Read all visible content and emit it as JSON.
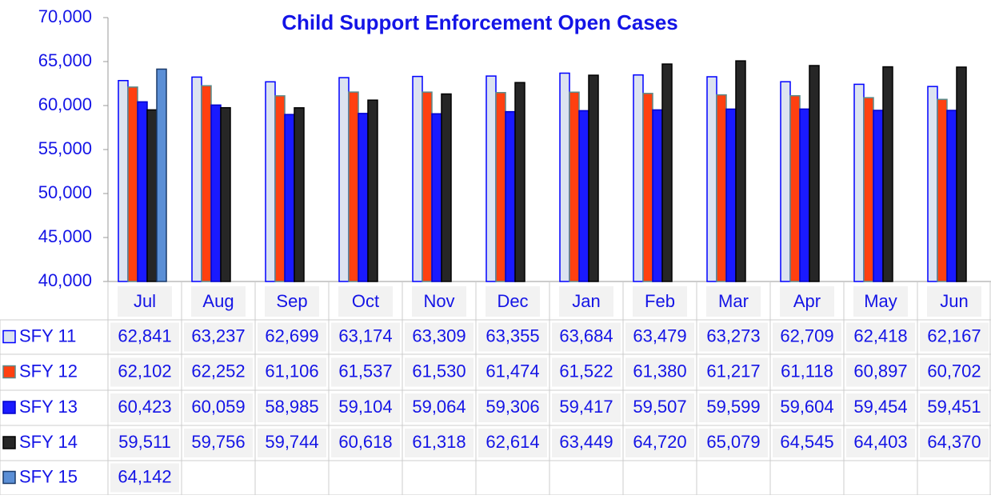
{
  "chart_data": {
    "type": "bar",
    "title": "Child Support Enforcement Open Cases",
    "categories": [
      "Jul",
      "Aug",
      "Sep",
      "Oct",
      "Nov",
      "Dec",
      "Jan",
      "Feb",
      "Mar",
      "Apr",
      "May",
      "Jun"
    ],
    "ylim": [
      40000,
      70000
    ],
    "yticks": [
      {
        "value": 40000,
        "label": "40,000"
      },
      {
        "value": 45000,
        "label": "45,000"
      },
      {
        "value": 50000,
        "label": "50,000"
      },
      {
        "value": 55000,
        "label": "55,000"
      },
      {
        "value": 60000,
        "label": "60,000"
      },
      {
        "value": 65000,
        "label": "65,000"
      },
      {
        "value": 70000,
        "label": "70,000"
      }
    ],
    "series": [
      {
        "name": "SFY 11",
        "color": "#dce3f0",
        "values": [
          62841,
          63237,
          62699,
          63174,
          63309,
          63355,
          63684,
          63479,
          63273,
          62709,
          62418,
          62167
        ],
        "value_labels": [
          "62,841",
          "63,237",
          "62,699",
          "63,174",
          "63,309",
          "63,355",
          "63,684",
          "63,479",
          "63,273",
          "62,709",
          "62,418",
          "62,167"
        ]
      },
      {
        "name": "SFY 12",
        "color": "#ff4010",
        "values": [
          62102,
          62252,
          61106,
          61537,
          61530,
          61474,
          61522,
          61380,
          61217,
          61118,
          60897,
          60702
        ],
        "value_labels": [
          "62,102",
          "62,252",
          "61,106",
          "61,537",
          "61,530",
          "61,474",
          "61,522",
          "61,380",
          "61,217",
          "61,118",
          "60,897",
          "60,702"
        ]
      },
      {
        "name": "SFY 13",
        "color": "#1a1aff",
        "values": [
          60423,
          60059,
          58985,
          59104,
          59064,
          59306,
          59417,
          59507,
          59599,
          59604,
          59454,
          59451
        ],
        "value_labels": [
          "60,423",
          "60,059",
          "58,985",
          "59,104",
          "59,064",
          "59,306",
          "59,417",
          "59,507",
          "59,599",
          "59,604",
          "59,454",
          "59,451"
        ]
      },
      {
        "name": "SFY 14",
        "color": "#262626",
        "values": [
          59511,
          59756,
          59744,
          60618,
          61318,
          62614,
          63449,
          64720,
          65079,
          64545,
          64403,
          64370
        ],
        "value_labels": [
          "59,511",
          "59,756",
          "59,744",
          "60,618",
          "61,318",
          "62,614",
          "63,449",
          "64,720",
          "65,079",
          "64,545",
          "64,403",
          "64,370"
        ]
      },
      {
        "name": "SFY 15",
        "color": "#5b8fd6",
        "values": [
          64142,
          null,
          null,
          null,
          null,
          null,
          null,
          null,
          null,
          null,
          null,
          null
        ],
        "value_labels": [
          "64,142",
          null,
          null,
          null,
          null,
          null,
          null,
          null,
          null,
          null,
          null,
          null
        ]
      }
    ]
  }
}
